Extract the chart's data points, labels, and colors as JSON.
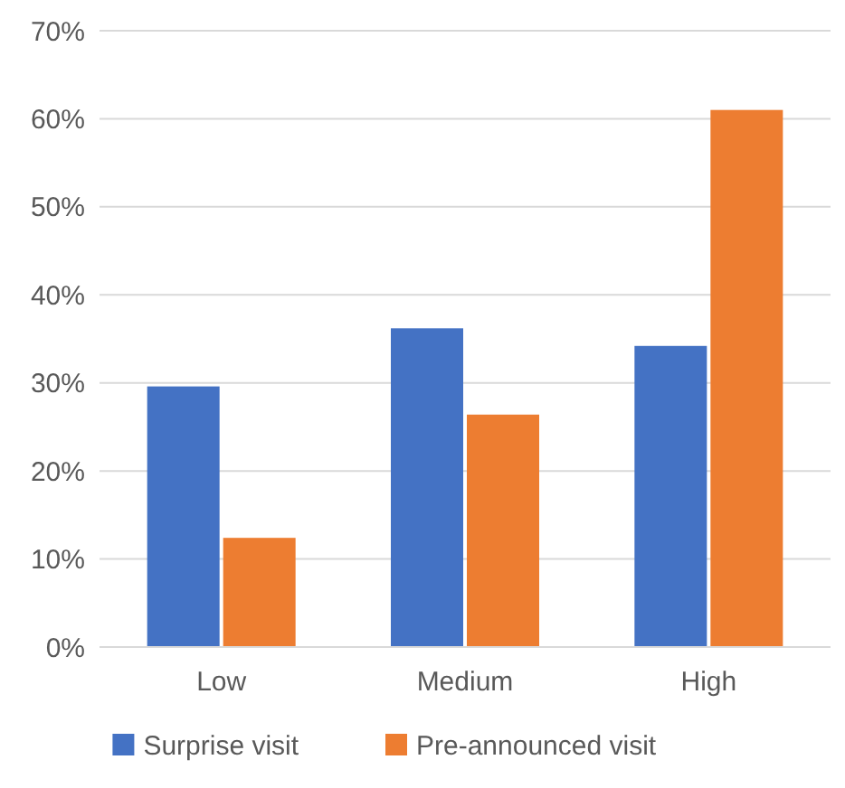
{
  "chart_data": {
    "type": "bar",
    "categories": [
      "Low",
      "Medium",
      "High"
    ],
    "series": [
      {
        "name": "Surprise visit",
        "color": "#4472c4",
        "values": [
          29.6,
          36.2,
          34.2
        ]
      },
      {
        "name": "Pre-announced visit",
        "color": "#ed7d31",
        "values": [
          12.4,
          26.4,
          61
        ]
      }
    ],
    "ylim": [
      0,
      70
    ],
    "yticks": [
      {
        "value": 0,
        "label": "0%"
      },
      {
        "value": 10,
        "label": "10%"
      },
      {
        "value": 20,
        "label": "20%"
      },
      {
        "value": 30,
        "label": "30%"
      },
      {
        "value": 40,
        "label": "40%"
      },
      {
        "value": 50,
        "label": "50%"
      },
      {
        "value": 60,
        "label": "60%"
      },
      {
        "value": 70,
        "label": "70%"
      }
    ],
    "grid": "y",
    "legend": "bottom"
  }
}
